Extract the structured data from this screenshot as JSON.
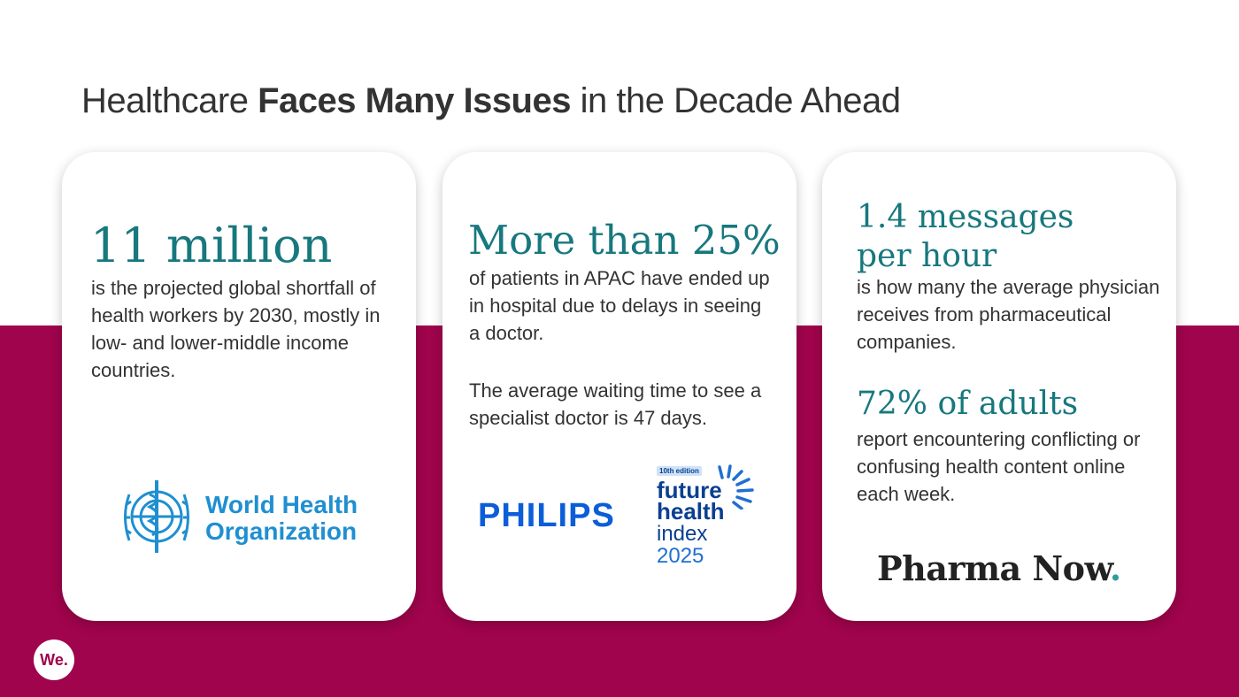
{
  "title": {
    "pre": "Healthcare ",
    "bold": "Faces Many Issues",
    "post": " in the Decade Ahead"
  },
  "cards": [
    {
      "stat": "11 million",
      "desc": "is the projected global shortfall of health workers by 2030, mostly in low- and lower-middle income countries.",
      "logo": {
        "line1": "World Health",
        "line2": "Organization"
      }
    },
    {
      "stat": "More than 25%",
      "desc": "of patients in APAC have ended up in hospital due to delays in seeing a doctor.",
      "desc2": "The average waiting time to see a specialist doctor is 47 days.",
      "logo_philips": "PHILIPS",
      "logo_fhi": {
        "badge": "10th edition",
        "line1": "future",
        "line2": "health",
        "line3": "index",
        "line4": "2025"
      }
    },
    {
      "stat": "1.4 messages per hour",
      "desc": "is how many the average physician receives from pharmaceutical companies.",
      "stat2": "72% of adults",
      "desc2": "report encountering conflicting or confusing health content online each week.",
      "logo": {
        "name": "Pharma Now",
        "dot": "."
      }
    }
  ],
  "footer": {
    "logo": "We."
  },
  "colors": {
    "band": "#a0044c",
    "accent": "#17787e",
    "who_blue": "#1f8fd1",
    "philips_blue": "#0b5ed7",
    "fhi_navy": "#0b3f91"
  }
}
